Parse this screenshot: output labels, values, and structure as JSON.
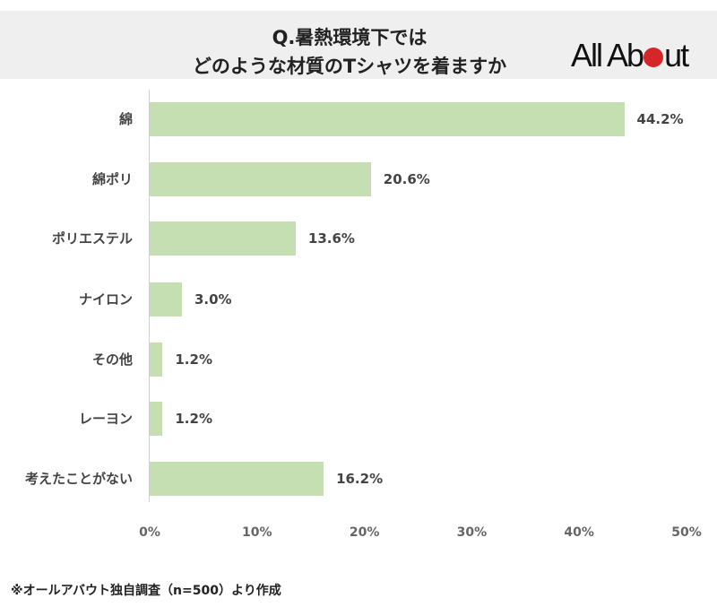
{
  "header": {
    "title_line1": "Q.暑熱環境下では",
    "title_line2": "どのような材質のTシャツを着ますか",
    "logo_text_before": "All Ab",
    "logo_text_after": "ut",
    "logo_dot_color": "#d7262a"
  },
  "chart_data": {
    "type": "bar",
    "orientation": "horizontal",
    "title": "Q.暑熱環境下では どのような材質のTシャツを着ますか",
    "categories": [
      "綿",
      "綿ポリ",
      "ポリエステル",
      "ナイロン",
      "その他",
      "レーヨン",
      "考えたことがない"
    ],
    "values": [
      44.2,
      20.6,
      13.6,
      3.0,
      1.2,
      1.2,
      16.2
    ],
    "value_labels": [
      "44.2%",
      "20.6%",
      "13.6%",
      "3.0%",
      "1.2%",
      "1.2%",
      "16.2%"
    ],
    "xlabel": "",
    "ylabel": "",
    "xlim": [
      0,
      50
    ],
    "x_ticks": [
      "0%",
      "10%",
      "20%",
      "30%",
      "40%",
      "50%"
    ],
    "grid": false,
    "bar_color": "#c5dfb3"
  },
  "footnote": "※オールアバウト独自調査（n=500）より作成"
}
